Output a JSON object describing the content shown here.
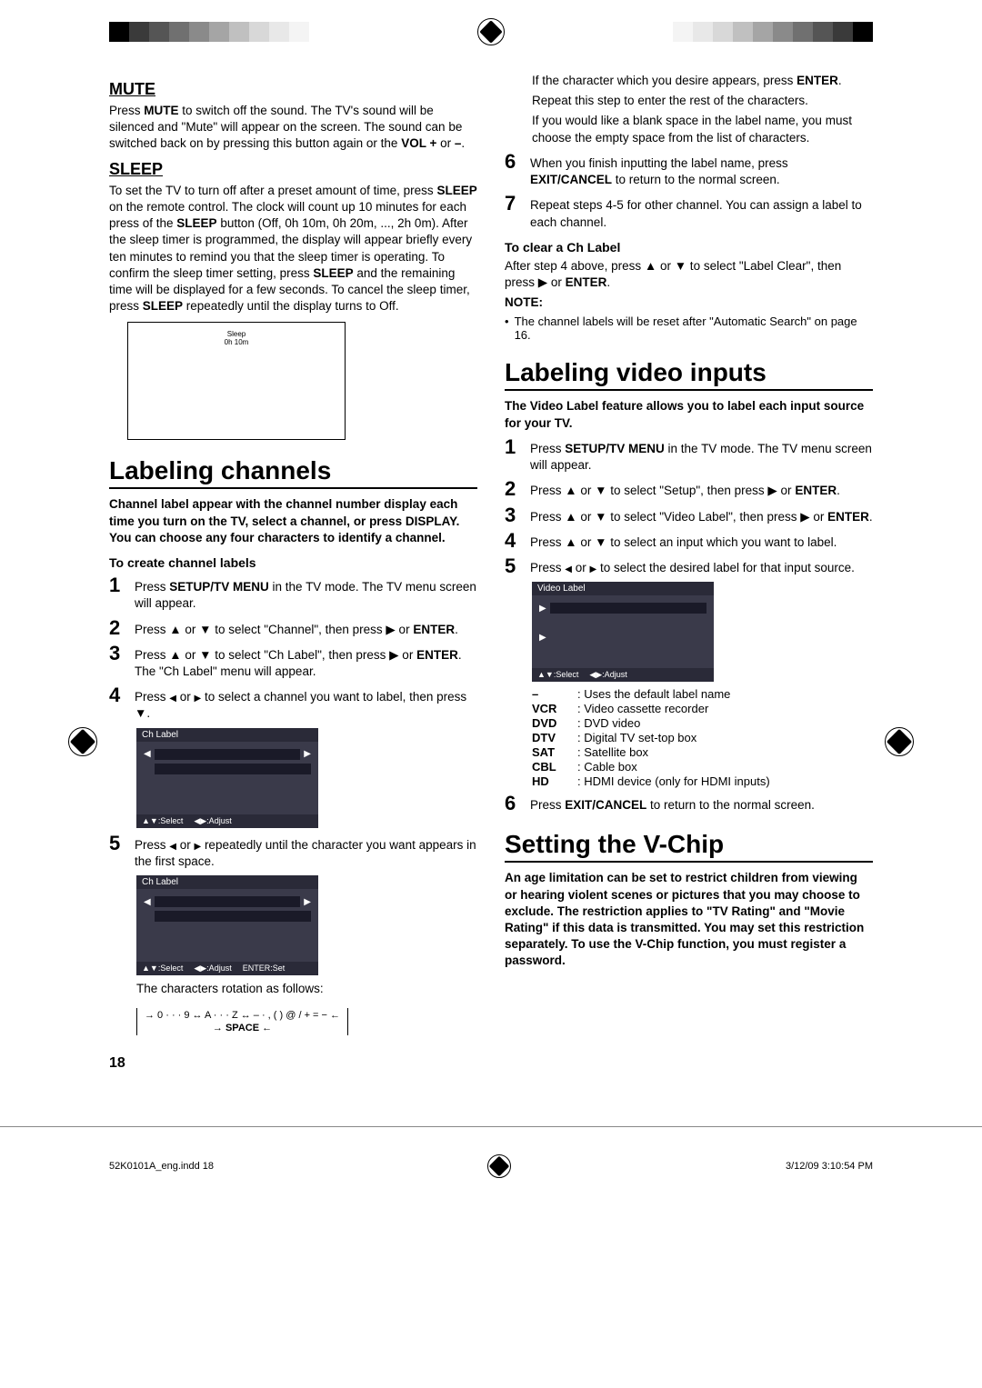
{
  "crop_colors_left": [
    "#000000",
    "#3a3a3a",
    "#555555",
    "#707070",
    "#8a8a8a",
    "#a5a5a5",
    "#c0c0c0",
    "#d8d8d8",
    "#e8e8e8",
    "#f4f4f4",
    "#ffffff"
  ],
  "crop_colors_right": [
    "#ffffff",
    "#f4f4f4",
    "#e8e8e8",
    "#d8d8d8",
    "#c0c0c0",
    "#a5a5a5",
    "#8a8a8a",
    "#707070",
    "#555555",
    "#3a3a3a",
    "#000000"
  ],
  "mute": {
    "heading": "MUTE",
    "body": "Press MUTE to switch off the sound. The TV's sound will be silenced and \"Mute\" will appear on the screen. The sound can be switched back on by pressing this button again or the VOL + or –."
  },
  "sleep": {
    "heading": "SLEEP",
    "body": "To set the TV to turn off after a preset amount of time, press SLEEP on the remote control. The clock will count up 10 minutes for each press of the SLEEP button (Off, 0h 10m, 0h 20m, ..., 2h 0m). After the sleep timer is programmed, the display will appear briefly every ten minutes to remind you that the sleep timer is operating. To confirm the sleep timer setting, press SLEEP and the remaining time will be displayed for a few seconds. To cancel the sleep timer, press SLEEP repeatedly until the display turns to Off.",
    "screen_label": "Sleep",
    "screen_value": "0h 10m"
  },
  "labeling_channels": {
    "heading": "Labeling channels",
    "intro": "Channel label appear with the channel number display each time you turn on the TV, select a channel, or press DISPLAY.\nYou can choose any four characters to identify a channel.",
    "sub_heading": "To create channel labels",
    "steps": [
      "Press SETUP/TV MENU in the TV mode. The TV menu screen will appear.",
      "Press ▲ or ▼ to select \"Channel\", then press ▶ or ENTER.",
      "Press ▲ or ▼ to select \"Ch Label\", then press ▶ or ENTER.\nThe \"Ch Label\" menu will appear.",
      "Press ◀ or ▶ to select a channel you want to label, then press ▼.",
      "Press ◀ or ▶ repeatedly until the character you want appears in the first space."
    ],
    "menu_title": "Ch Label",
    "menu_footer_select": "▲▼:Select",
    "menu_footer_adjust": "◀▶:Adjust",
    "menu_footer_enter": "ENTER:Set",
    "chars_follow": "The characters rotation as follows:",
    "char_rotation_1": "→ 0 · · · 9 ↔ A · · · Z ↔ – · , ( ) @ / + = − ←",
    "char_rotation_2": "→ SPACE ←"
  },
  "right_top": {
    "line1": "If the character which you desire appears, press ENTER.",
    "line2": "Repeat this step to enter the rest of the characters.",
    "line3": "If you would like a blank space in the label name, you must choose the empty space from the list of characters.",
    "step6": "When you finish inputting the label name, press EXIT/CANCEL to return to the normal screen.",
    "step7": "Repeat steps 4-5 for other channel. You can assign a label to each channel.",
    "clear_heading": "To clear a Ch Label",
    "clear_body": "After step 4 above, press ▲ or ▼ to select \"Label Clear\", then press ▶ or ENTER.",
    "note_label": "NOTE:",
    "note_bullet": "The channel labels will be reset after \"Automatic Search\" on page 16."
  },
  "labeling_video": {
    "heading": "Labeling video inputs",
    "intro": "The Video Label feature allows you to label each input source for your TV.",
    "steps": [
      "Press SETUP/TV MENU in the TV mode. The TV menu screen will appear.",
      "Press ▲ or ▼ to select \"Setup\", then press ▶ or ENTER.",
      "Press ▲ or ▼ to select \"Video Label\", then press ▶ or ENTER.",
      "Press ▲ or ▼ to select an input which you want to label.",
      "Press ◀ or ▶ to select the desired label for that input source."
    ],
    "menu_title": "Video Label",
    "label_rows": [
      {
        "k": "–",
        "v": ": Uses the default label name"
      },
      {
        "k": "VCR",
        "v": ": Video cassette recorder"
      },
      {
        "k": "DVD",
        "v": ": DVD video"
      },
      {
        "k": "DTV",
        "v": ": Digital TV set-top box"
      },
      {
        "k": "SAT",
        "v": ": Satellite box"
      },
      {
        "k": "CBL",
        "v": ": Cable box"
      },
      {
        "k": "HD",
        "v": ": HDMI device (only for HDMI inputs)"
      }
    ],
    "step6": "Press EXIT/CANCEL to return to the normal screen."
  },
  "vchip": {
    "heading": "Setting the V-Chip",
    "body": "An age limitation can be set to restrict children from viewing or hearing violent scenes or pictures that you may choose to exclude.  The restriction applies to \"TV Rating\" and \"Movie Rating\" if this data is transmitted.  You may set this restriction separately.  To use the V-Chip function, you must register a password."
  },
  "page_number": "18",
  "footer_left": "52K0101A_eng.indd   18",
  "footer_right": "3/12/09   3:10:54 PM"
}
